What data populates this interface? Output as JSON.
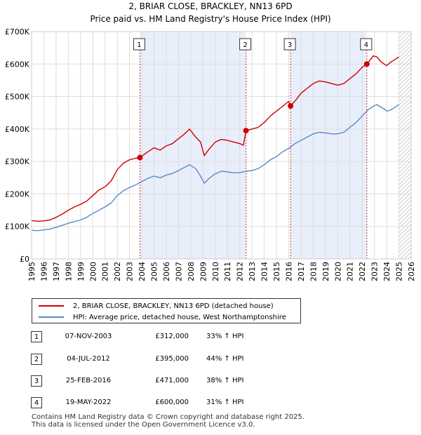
{
  "chart_data": {
    "type": "line",
    "title": "2, BRIAR CLOSE, BRACKLEY, NN13 6PD",
    "subtitle": "Price paid vs. HM Land Registry's House Price Index (HPI)",
    "xlabel": "",
    "ylabel": "",
    "xlim": [
      1995,
      2026
    ],
    "ylim": [
      0,
      700000
    ],
    "yticks": [
      0,
      100000,
      200000,
      300000,
      400000,
      500000,
      600000,
      700000
    ],
    "ytick_labels": [
      "£0",
      "£100K",
      "£200K",
      "£300K",
      "£400K",
      "£500K",
      "£600K",
      "£700K"
    ],
    "xticks": [
      "1995",
      "1996",
      "1997",
      "1998",
      "1999",
      "2000",
      "2001",
      "2002",
      "2003",
      "2004",
      "2005",
      "2006",
      "2007",
      "2008",
      "2009",
      "2010",
      "2011",
      "2012",
      "2013",
      "2014",
      "2015",
      "2016",
      "2017",
      "2018",
      "2019",
      "2020",
      "2021",
      "2022",
      "2023",
      "2024",
      "2025",
      "2026"
    ],
    "grid": true,
    "forecast_start": 2025.0,
    "series": [
      {
        "name": "2, BRIAR CLOSE, BRACKLEY, NN13 6PD (detached house)",
        "color": "#cc0000",
        "x": [
          1995.0,
          1995.5,
          1996.0,
          1996.5,
          1997.0,
          1997.5,
          1998.0,
          1998.5,
          1999.0,
          1999.5,
          2000.0,
          2000.5,
          2001.0,
          2001.5,
          2002.0,
          2002.5,
          2003.0,
          2003.5,
          2003.85,
          2004.5,
          2005.0,
          2005.5,
          2006.0,
          2006.5,
          2007.0,
          2007.5,
          2007.9,
          2008.4,
          2008.8,
          2009.1,
          2009.5,
          2010.0,
          2010.5,
          2011.0,
          2011.5,
          2012.0,
          2012.3,
          2012.51,
          2013.0,
          2013.5,
          2014.0,
          2014.5,
          2015.0,
          2015.5,
          2016.0,
          2016.15,
          2016.6,
          2017.0,
          2017.5,
          2018.0,
          2018.5,
          2019.0,
          2019.5,
          2020.0,
          2020.5,
          2021.0,
          2021.5,
          2022.0,
          2022.38,
          2022.6,
          2022.9,
          2023.2,
          2023.5,
          2023.8,
          2024.0,
          2024.3,
          2024.6,
          2025.0
        ],
        "y": [
          118000,
          116000,
          117000,
          120000,
          128000,
          138000,
          150000,
          160000,
          168000,
          178000,
          195000,
          212000,
          222000,
          240000,
          275000,
          295000,
          305000,
          310000,
          312000,
          330000,
          342000,
          335000,
          348000,
          355000,
          370000,
          385000,
          400000,
          375000,
          360000,
          318000,
          338000,
          360000,
          368000,
          365000,
          360000,
          355000,
          350000,
          395000,
          400000,
          405000,
          420000,
          440000,
          455000,
          470000,
          485000,
          471000,
          490000,
          510000,
          525000,
          540000,
          548000,
          545000,
          540000,
          535000,
          540000,
          555000,
          570000,
          590000,
          600000,
          610000,
          625000,
          622000,
          608000,
          600000,
          595000,
          605000,
          612000,
          622000
        ]
      },
      {
        "name": "HPI: Average price, detached house, West Northamptonshire",
        "color": "#5b8ac6",
        "x": [
          1995.0,
          1995.5,
          1996.0,
          1996.5,
          1997.0,
          1997.5,
          1998.0,
          1998.5,
          1999.0,
          1999.5,
          2000.0,
          2000.5,
          2001.0,
          2001.5,
          2002.0,
          2002.5,
          2003.0,
          2003.5,
          2004.0,
          2004.5,
          2005.0,
          2005.5,
          2006.0,
          2006.5,
          2007.0,
          2007.5,
          2007.9,
          2008.4,
          2008.8,
          2009.1,
          2009.5,
          2010.0,
          2010.5,
          2011.0,
          2011.5,
          2012.0,
          2012.5,
          2013.0,
          2013.5,
          2014.0,
          2014.5,
          2015.0,
          2015.5,
          2016.0,
          2016.5,
          2017.0,
          2017.5,
          2018.0,
          2018.5,
          2019.0,
          2019.5,
          2020.0,
          2020.5,
          2021.0,
          2021.5,
          2022.0,
          2022.5,
          2022.9,
          2023.2,
          2023.5,
          2023.8,
          2024.0,
          2024.3,
          2024.6,
          2025.0
        ],
        "y": [
          88000,
          87000,
          89000,
          92000,
          97000,
          103000,
          110000,
          115000,
          120000,
          128000,
          140000,
          150000,
          160000,
          172000,
          195000,
          210000,
          220000,
          228000,
          238000,
          248000,
          255000,
          250000,
          258000,
          263000,
          272000,
          282000,
          290000,
          278000,
          255000,
          233000,
          248000,
          262000,
          270000,
          268000,
          265000,
          265000,
          270000,
          272000,
          278000,
          290000,
          305000,
          315000,
          330000,
          340000,
          355000,
          365000,
          375000,
          385000,
          390000,
          388000,
          385000,
          385000,
          390000,
          405000,
          420000,
          440000,
          460000,
          470000,
          475000,
          468000,
          462000,
          455000,
          458000,
          465000,
          475000
        ]
      }
    ],
    "sales": [
      {
        "id": "1",
        "x": 2003.85,
        "price": 312000
      },
      {
        "id": "2",
        "x": 2012.51,
        "price": 395000
      },
      {
        "id": "3",
        "x": 2016.15,
        "price": 471000
      },
      {
        "id": "4",
        "x": 2022.38,
        "price": 600000
      }
    ],
    "shaded_periods": [
      [
        2003.85,
        2012.51
      ],
      [
        2016.15,
        2022.38
      ]
    ]
  },
  "legend": {
    "property_label": "2, BRIAR CLOSE, BRACKLEY, NN13 6PD (detached house)",
    "hpi_label": "HPI: Average price, detached house, West Northamptonshire"
  },
  "sales_table": [
    {
      "badge": "1",
      "date": "07-NOV-2003",
      "price": "£312,000",
      "hpi": "33% ↑ HPI"
    },
    {
      "badge": "2",
      "date": "04-JUL-2012",
      "price": "£395,000",
      "hpi": "44% ↑ HPI"
    },
    {
      "badge": "3",
      "date": "25-FEB-2016",
      "price": "£471,000",
      "hpi": "38% ↑ HPI"
    },
    {
      "badge": "4",
      "date": "19-MAY-2022",
      "price": "£600,000",
      "hpi": "31% ↑ HPI"
    }
  ],
  "colors": {
    "property": "#cc0000",
    "hpi": "#5b8ac6",
    "shade": "#e8eefa",
    "grid": "#dddddd",
    "forecast_hatch": "#999999"
  },
  "footer": {
    "line1": "Contains HM Land Registry data © Crown copyright and database right 2025.",
    "line2": "This data is licensed under the Open Government Licence v3.0."
  }
}
